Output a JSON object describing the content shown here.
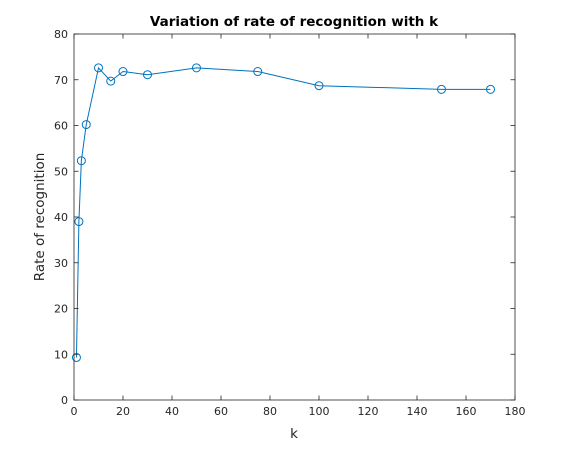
{
  "chart_data": {
    "type": "line",
    "title": "Variation of rate of recognition with k",
    "xlabel": "k",
    "ylabel": "Rate of recognition",
    "xlim": [
      0,
      180
    ],
    "ylim": [
      0,
      80
    ],
    "xticks": [
      0,
      20,
      40,
      60,
      80,
      100,
      120,
      140,
      160,
      180
    ],
    "yticks": [
      0,
      10,
      20,
      30,
      40,
      50,
      60,
      70,
      80
    ],
    "grid": false,
    "marker": "circle",
    "series": [
      {
        "color": "#0072bd",
        "x": [
          1,
          2,
          3,
          5,
          10,
          15,
          20,
          30,
          50,
          75,
          100,
          150,
          170
        ],
        "y": [
          9.3,
          39.0,
          52.3,
          60.2,
          72.6,
          69.7,
          71.8,
          71.1,
          72.6,
          71.8,
          68.7,
          67.9,
          67.9
        ]
      }
    ]
  }
}
